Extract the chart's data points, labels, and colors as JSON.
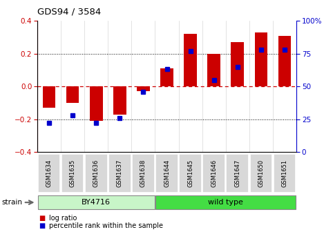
{
  "title": "GDS94 / 3584",
  "samples": [
    "GSM1634",
    "GSM1635",
    "GSM1636",
    "GSM1637",
    "GSM1638",
    "GSM1644",
    "GSM1645",
    "GSM1646",
    "GSM1647",
    "GSM1650",
    "GSM1651"
  ],
  "log_ratios": [
    -0.13,
    -0.1,
    -0.21,
    -0.17,
    -0.03,
    0.11,
    0.32,
    0.2,
    0.27,
    0.33,
    0.31
  ],
  "percentile_ranks": [
    22,
    28,
    22,
    26,
    46,
    63,
    77,
    55,
    65,
    78,
    78
  ],
  "group_spans": [
    {
      "label": "BY4716",
      "start": 0,
      "end": 4,
      "facecolor": "#c8f5c8"
    },
    {
      "label": "wild type",
      "start": 5,
      "end": 10,
      "facecolor": "#44dd44"
    }
  ],
  "bar_color": "#cc0000",
  "dot_color": "#0000cc",
  "ylim_left": [
    -0.4,
    0.4
  ],
  "ylim_right": [
    0,
    100
  ],
  "yticks_left": [
    -0.4,
    -0.2,
    0.0,
    0.2,
    0.4
  ],
  "yticks_right": [
    0,
    25,
    50,
    75,
    100
  ],
  "hline_color": "#cc0000",
  "dotted_color": "#000000",
  "bar_width": 0.55,
  "legend_log_ratio": "log ratio",
  "legend_percentile": "percentile rank within the sample"
}
